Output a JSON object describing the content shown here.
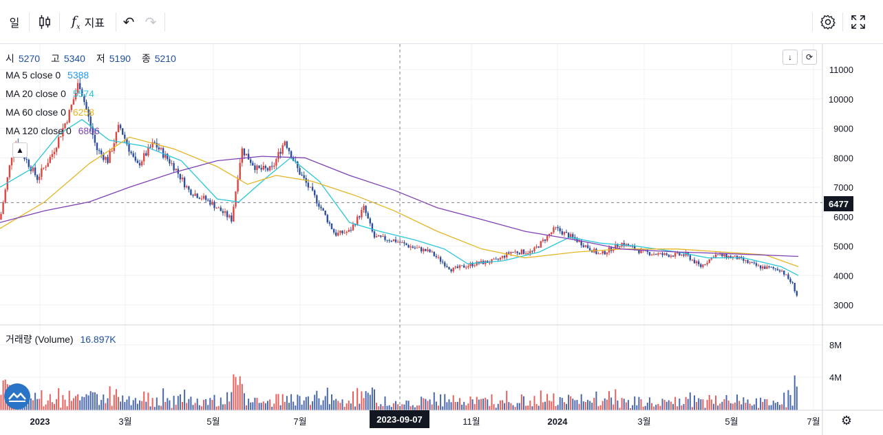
{
  "toolbar": {
    "interval": "일",
    "indicators": "지표"
  },
  "legend": {
    "ohlc": {
      "open_label": "시",
      "open": "5270",
      "high_label": "고",
      "high": "5340",
      "low_label": "저",
      "low": "5190",
      "close_label": "종",
      "close": "5210"
    },
    "ma": [
      {
        "label": "MA 5 close 0",
        "value": "5388",
        "color": "#2196f3"
      },
      {
        "label": "MA 20 close 0",
        "value": "5574",
        "color": "#26c6da"
      },
      {
        "label": "MA 60 close 0",
        "value": "6258",
        "color": "#e6b422"
      },
      {
        "label": "MA 120 close 0",
        "value": "6806",
        "color": "#7e3fb5"
      }
    ],
    "volume_label": "거래량 (Volume)",
    "volume_value": "16.897K"
  },
  "crosshair": {
    "date": "2023-09-07",
    "price": "6477"
  },
  "colors": {
    "up": "#e0443f",
    "down": "#2a4f9e",
    "ma5": "#2196f3",
    "ma20": "#26c6da",
    "ma60": "#e6b422",
    "ma120": "#7e3fb5",
    "grid": "#eef0f3"
  },
  "chart_data": {
    "type": "candlestick",
    "price_axis": {
      "ticks": [
        "11000",
        "10000",
        "9000",
        "8000",
        "7000",
        "6000",
        "5000",
        "4000",
        "3000"
      ],
      "range": [
        2700,
        11400
      ]
    },
    "volume_axis": {
      "ticks": [
        "8M",
        "4M"
      ]
    },
    "time_axis": {
      "labels": [
        "2023",
        "3월",
        "5월",
        "7월",
        "11월",
        "2024",
        "3월",
        "5월",
        "7월"
      ]
    },
    "price_path": [
      [
        "2022-12-15",
        5900
      ],
      [
        "2022-12-25",
        8600
      ],
      [
        "2023-01-10",
        7300
      ],
      [
        "2023-01-20",
        8100
      ],
      [
        "2023-02-01",
        9500
      ],
      [
        "2023-02-08",
        10600
      ],
      [
        "2023-02-20",
        8300
      ],
      [
        "2023-02-28",
        7900
      ],
      [
        "2023-03-08",
        9100
      ],
      [
        "2023-03-20",
        7700
      ],
      [
        "2023-04-01",
        8500
      ],
      [
        "2023-04-15",
        7700
      ],
      [
        "2023-04-25",
        6900
      ],
      [
        "2023-05-10",
        6500
      ],
      [
        "2023-05-25",
        5900
      ],
      [
        "2023-06-01",
        8300
      ],
      [
        "2023-06-12",
        7600
      ],
      [
        "2023-06-22",
        7600
      ],
      [
        "2023-07-01",
        8600
      ],
      [
        "2023-07-10",
        7600
      ],
      [
        "2023-07-25",
        6400
      ],
      [
        "2023-08-05",
        5400
      ],
      [
        "2023-08-15",
        5500
      ],
      [
        "2023-08-25",
        6300
      ],
      [
        "2023-09-01",
        5300
      ],
      [
        "2023-09-15",
        5200
      ],
      [
        "2023-09-25",
        5000
      ],
      [
        "2023-10-10",
        4800
      ],
      [
        "2023-10-25",
        4200
      ],
      [
        "2023-11-10",
        4400
      ],
      [
        "2023-11-25",
        4500
      ],
      [
        "2023-12-05",
        4800
      ],
      [
        "2023-12-20",
        4800
      ],
      [
        "2024-01-05",
        5600
      ],
      [
        "2024-01-20",
        5200
      ],
      [
        "2024-02-05",
        4700
      ],
      [
        "2024-02-20",
        5100
      ],
      [
        "2024-03-05",
        4800
      ],
      [
        "2024-03-20",
        4700
      ],
      [
        "2024-04-05",
        4700
      ],
      [
        "2024-04-15",
        4300
      ],
      [
        "2024-04-25",
        4700
      ],
      [
        "2024-05-10",
        4600
      ],
      [
        "2024-05-25",
        4300
      ],
      [
        "2024-06-10",
        4200
      ],
      [
        "2024-06-18",
        3700
      ],
      [
        "2024-06-22",
        3200
      ]
    ],
    "ma_series": [
      {
        "name": "MA 20 close 0",
        "points": [
          [
            "2022-12-15",
            7000
          ],
          [
            "2023-01-05",
            7600
          ],
          [
            "2023-01-25",
            8800
          ],
          [
            "2023-02-10",
            9300
          ],
          [
            "2023-03-01",
            8600
          ],
          [
            "2023-03-25",
            8400
          ],
          [
            "2023-04-20",
            7900
          ],
          [
            "2023-05-15",
            6600
          ],
          [
            "2023-05-30",
            6500
          ],
          [
            "2023-06-20",
            7400
          ],
          [
            "2023-07-05",
            8000
          ],
          [
            "2023-07-25",
            7200
          ],
          [
            "2023-08-15",
            5800
          ],
          [
            "2023-09-05",
            5500
          ],
          [
            "2023-09-30",
            5200
          ],
          [
            "2023-10-20",
            4900
          ],
          [
            "2023-11-05",
            4400
          ],
          [
            "2023-11-30",
            4500
          ],
          [
            "2023-12-25",
            4800
          ],
          [
            "2024-01-15",
            5300
          ],
          [
            "2024-02-05",
            5100
          ],
          [
            "2024-03-01",
            5000
          ],
          [
            "2024-03-30",
            4800
          ],
          [
            "2024-04-20",
            4600
          ],
          [
            "2024-05-15",
            4600
          ],
          [
            "2024-06-10",
            4300
          ],
          [
            "2024-06-22",
            4000
          ]
        ]
      },
      {
        "name": "MA 60 close 0",
        "points": [
          [
            "2022-12-15",
            5600
          ],
          [
            "2023-01-15",
            6500
          ],
          [
            "2023-02-15",
            7800
          ],
          [
            "2023-03-15",
            8700
          ],
          [
            "2023-04-15",
            8300
          ],
          [
            "2023-05-15",
            7700
          ],
          [
            "2023-06-05",
            7100
          ],
          [
            "2023-06-25",
            7400
          ],
          [
            "2023-07-20",
            7200
          ],
          [
            "2023-08-20",
            6700
          ],
          [
            "2023-09-15",
            6200
          ],
          [
            "2023-10-15",
            5500
          ],
          [
            "2023-11-15",
            4900
          ],
          [
            "2023-12-15",
            4600
          ],
          [
            "2024-01-20",
            4800
          ],
          [
            "2024-02-20",
            4900
          ],
          [
            "2024-03-30",
            4900
          ],
          [
            "2024-04-30",
            4800
          ],
          [
            "2024-05-30",
            4700
          ],
          [
            "2024-06-22",
            4300
          ]
        ]
      },
      {
        "name": "MA 120 close 0",
        "points": [
          [
            "2022-12-15",
            5800
          ],
          [
            "2023-01-15",
            6200
          ],
          [
            "2023-02-15",
            6500
          ],
          [
            "2023-03-15",
            7000
          ],
          [
            "2023-04-15",
            7500
          ],
          [
            "2023-05-15",
            7900
          ],
          [
            "2023-06-15",
            8050
          ],
          [
            "2023-07-15",
            8000
          ],
          [
            "2023-08-15",
            7400
          ],
          [
            "2023-09-15",
            6900
          ],
          [
            "2023-10-15",
            6300
          ],
          [
            "2023-11-15",
            5900
          ],
          [
            "2023-12-15",
            5500
          ],
          [
            "2024-01-20",
            5200
          ],
          [
            "2024-02-20",
            4900
          ],
          [
            "2024-03-30",
            4800
          ],
          [
            "2024-04-30",
            4750
          ],
          [
            "2024-06-22",
            4650
          ]
        ]
      }
    ]
  }
}
